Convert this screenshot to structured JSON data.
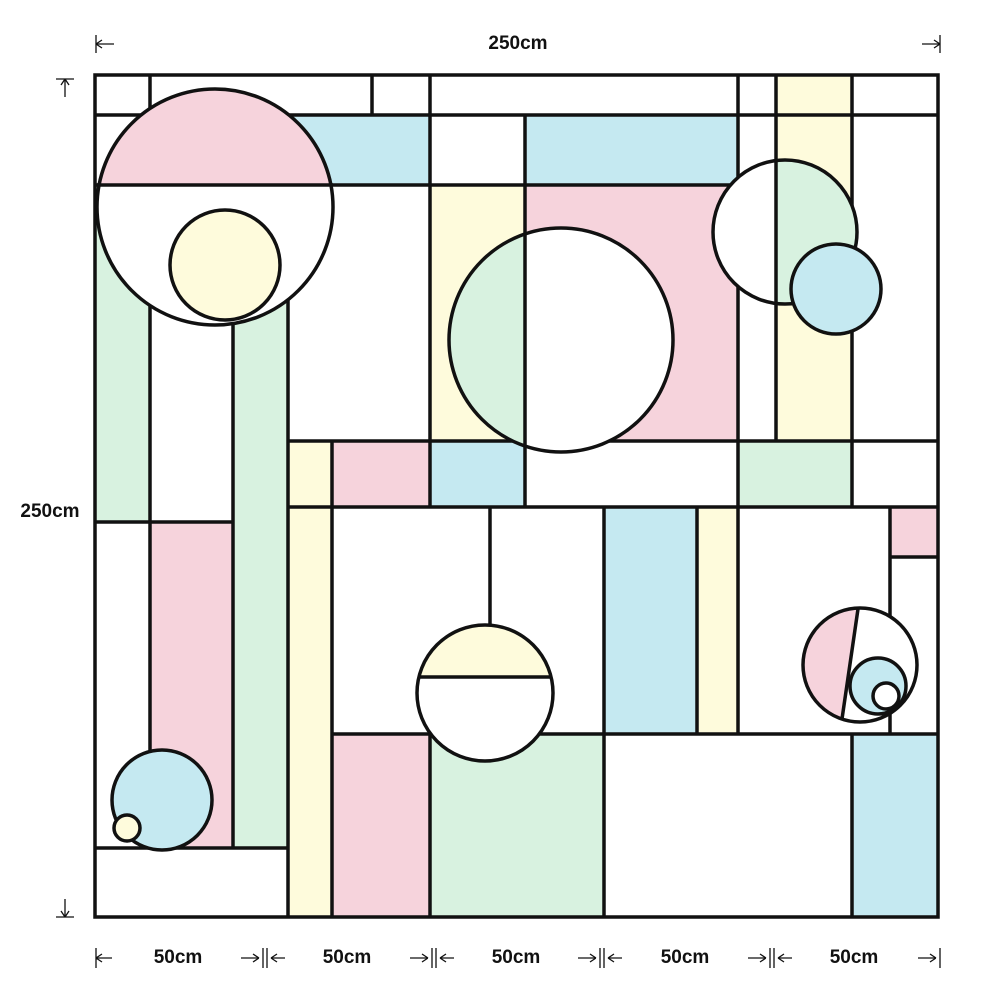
{
  "dimensions": {
    "width": "250cm",
    "height": "250cm",
    "segments": [
      "50cm",
      "50cm",
      "50cm",
      "50cm",
      "50cm"
    ]
  }
}
